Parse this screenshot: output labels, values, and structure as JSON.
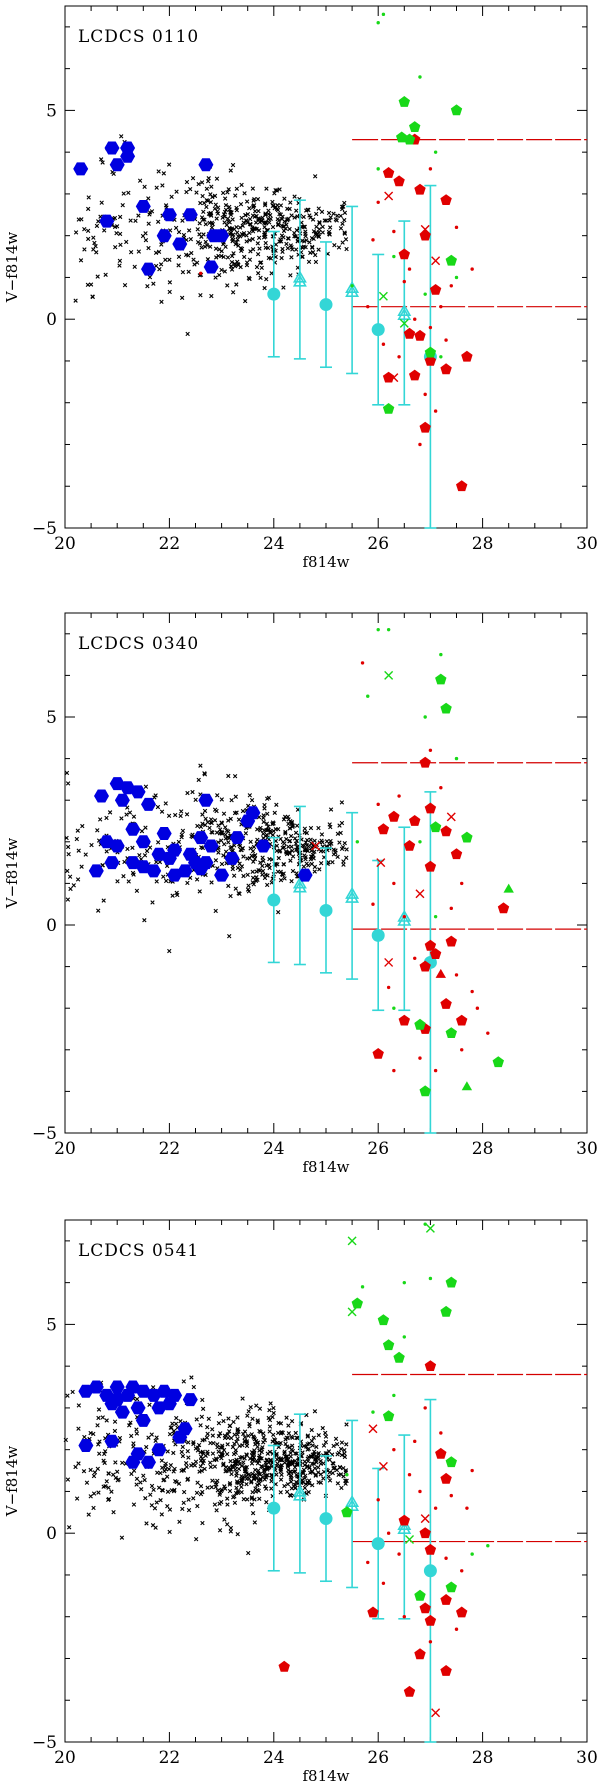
{
  "figure": {
    "colors": {
      "field_stars": "#000000",
      "cluster_members": "#0000e0",
      "error_bars": "#33d6d6",
      "red_candidates": "#e00000",
      "green_candidates": "#18d818",
      "reference_lines": "#d40000"
    }
  },
  "chart_data": [
    {
      "type": "scatter",
      "panel_label": "LCDCS 0110",
      "xlabel": "f814w",
      "ylabel": "V−f814w",
      "xlim": [
        20,
        30
      ],
      "ylim": [
        -5,
        7.5
      ],
      "xticks": [
        "20",
        "22",
        "24",
        "26",
        "28",
        "30"
      ],
      "yticks": [
        "−5",
        "0",
        "5"
      ],
      "hlines": [
        4.3,
        0.3
      ],
      "hline_xmin": 25.5,
      "errorbars": {
        "filled": [
          {
            "x": 24,
            "y": 0.6,
            "err": 1.5
          },
          {
            "x": 25,
            "y": 0.35,
            "err": 1.5
          },
          {
            "x": 26,
            "y": -0.25,
            "err": 1.8
          },
          {
            "x": 27,
            "y": -0.9,
            "err": 4.1
          }
        ],
        "open": [
          {
            "x": 24.5,
            "y": 0.95,
            "err": 1.9
          },
          {
            "x": 25.5,
            "y": 0.7,
            "err": 2.0
          },
          {
            "x": 26.5,
            "y": 0.15,
            "err": 2.2
          }
        ]
      },
      "field": {
        "n": 560,
        "seed": 11,
        "color_mean": 2.1,
        "color_sd": 0.85,
        "xmin": 20.2,
        "xmax": 25.4,
        "core_x": 23.6,
        "core_sd": 1.0,
        "spread_scale": 0.75
      },
      "blue_hexagons": [
        [
          20.3,
          3.6
        ],
        [
          20.8,
          2.35
        ],
        [
          20.9,
          4.1
        ],
        [
          21.0,
          3.7
        ],
        [
          21.2,
          3.9
        ],
        [
          21.2,
          4.1
        ],
        [
          21.5,
          2.7
        ],
        [
          21.6,
          1.2
        ],
        [
          21.9,
          2.0
        ],
        [
          22.0,
          2.5
        ],
        [
          22.2,
          1.8
        ],
        [
          22.4,
          2.5
        ],
        [
          22.7,
          3.7
        ],
        [
          22.8,
          1.25
        ],
        [
          22.85,
          2.0
        ],
        [
          23.0,
          2.0
        ]
      ],
      "red_pentagons": [
        [
          26.2,
          3.5
        ],
        [
          26.4,
          3.3
        ],
        [
          26.7,
          4.3
        ],
        [
          26.8,
          3.1
        ],
        [
          26.9,
          2.0
        ],
        [
          27.3,
          2.85
        ],
        [
          26.5,
          1.55
        ],
        [
          27.1,
          0.7
        ],
        [
          26.6,
          -0.35
        ],
        [
          26.8,
          -0.4
        ],
        [
          26.7,
          -1.35
        ],
        [
          26.2,
          -1.4
        ],
        [
          27.0,
          -1.0
        ],
        [
          27.3,
          -1.2
        ],
        [
          27.7,
          -0.9
        ],
        [
          26.9,
          -2.6
        ],
        [
          27.6,
          -4.0
        ]
      ],
      "green_pentagons": [
        [
          26.5,
          5.2
        ],
        [
          26.6,
          4.3
        ],
        [
          26.45,
          4.35
        ],
        [
          27.5,
          5.0
        ],
        [
          26.7,
          4.6
        ],
        [
          27.4,
          1.4
        ],
        [
          27.0,
          -0.8
        ],
        [
          26.2,
          -2.15
        ]
      ],
      "red_crosses": [
        [
          26.2,
          2.95
        ],
        [
          26.9,
          2.15
        ],
        [
          27.1,
          1.4
        ],
        [
          26.3,
          -1.4
        ]
      ],
      "green_crosses": [
        [
          26.1,
          0.55
        ],
        [
          26.5,
          -0.1
        ]
      ],
      "red_dots": [
        [
          25.9,
          1.9
        ],
        [
          26.3,
          2.1
        ],
        [
          26.5,
          0.9
        ],
        [
          26.7,
          0.0
        ],
        [
          27.0,
          -0.2
        ],
        [
          27.2,
          0.3
        ],
        [
          27.3,
          -0.5
        ],
        [
          26.9,
          -1.8
        ],
        [
          27.1,
          -2.2
        ],
        [
          26.4,
          -0.9
        ],
        [
          27.5,
          2.2
        ],
        [
          26.6,
          1.2
        ],
        [
          26.1,
          -0.6
        ],
        [
          27.8,
          1.2
        ],
        [
          27.0,
          3.6
        ],
        [
          25.8,
          0.3
        ],
        [
          22.6,
          1.1
        ],
        [
          26.0,
          2.8
        ],
        [
          27.4,
          0.8
        ],
        [
          26.8,
          -3.0
        ]
      ],
      "green_dots": [
        [
          26.0,
          7.1
        ],
        [
          26.1,
          7.3
        ],
        [
          27.1,
          4.0
        ],
        [
          26.3,
          1.5
        ],
        [
          25.5,
          0.8
        ],
        [
          26.9,
          0.6
        ],
        [
          27.2,
          -0.9
        ],
        [
          26.8,
          5.8
        ],
        [
          27.5,
          1.0
        ],
        [
          26.0,
          3.6
        ]
      ]
    },
    {
      "type": "scatter",
      "panel_label": "LCDCS 0340",
      "xlabel": "f814w",
      "ylabel": "V−f814w",
      "xlim": [
        20,
        30
      ],
      "ylim": [
        -5,
        7.5
      ],
      "xticks": [
        "20",
        "22",
        "24",
        "26",
        "28",
        "30"
      ],
      "yticks": [
        "−5",
        "0",
        "5"
      ],
      "hlines": [
        3.9,
        -0.1
      ],
      "hline_xmin": 25.5,
      "errorbars": {
        "filled": [
          {
            "x": 24,
            "y": 0.6,
            "err": 1.5
          },
          {
            "x": 25,
            "y": 0.35,
            "err": 1.5
          },
          {
            "x": 26,
            "y": -0.25,
            "err": 1.8
          },
          {
            "x": 27,
            "y": -0.9,
            "err": 4.1
          }
        ],
        "open": [
          {
            "x": 24.5,
            "y": 0.95,
            "err": 1.9
          },
          {
            "x": 25.5,
            "y": 0.7,
            "err": 2.0
          },
          {
            "x": 26.5,
            "y": 0.15,
            "err": 2.2
          }
        ]
      },
      "field": {
        "n": 520,
        "seed": 37,
        "color_mean": 1.9,
        "color_sd": 0.85,
        "xmin": 20.0,
        "xmax": 25.4,
        "core_x": 23.9,
        "core_sd": 1.0,
        "spread_scale": 0.7
      },
      "blue_hexagons": [
        [
          20.6,
          1.3
        ],
        [
          20.7,
          3.1
        ],
        [
          20.8,
          2.0
        ],
        [
          20.9,
          1.5
        ],
        [
          21.0,
          3.4
        ],
        [
          21.0,
          1.9
        ],
        [
          21.1,
          3.0
        ],
        [
          21.2,
          3.3
        ],
        [
          21.3,
          2.3
        ],
        [
          21.3,
          1.5
        ],
        [
          21.4,
          3.2
        ],
        [
          21.5,
          2.0
        ],
        [
          21.5,
          1.4
        ],
        [
          21.6,
          2.9
        ],
        [
          21.7,
          1.3
        ],
        [
          21.8,
          1.7
        ],
        [
          21.9,
          2.2
        ],
        [
          22.0,
          1.6
        ],
        [
          22.1,
          1.2
        ],
        [
          22.1,
          1.8
        ],
        [
          22.3,
          1.3
        ],
        [
          22.4,
          1.7
        ],
        [
          22.5,
          1.5
        ],
        [
          22.6,
          1.35
        ],
        [
          22.6,
          2.1
        ],
        [
          22.7,
          1.5
        ],
        [
          22.8,
          1.9
        ],
        [
          23.0,
          1.2
        ],
        [
          23.2,
          1.6
        ],
        [
          23.3,
          2.1
        ],
        [
          23.5,
          2.5
        ],
        [
          23.6,
          2.7
        ],
        [
          23.8,
          1.9
        ],
        [
          22.7,
          3.0
        ],
        [
          24.6,
          1.2
        ]
      ],
      "red_pentagons": [
        [
          26.1,
          2.3
        ],
        [
          26.3,
          2.6
        ],
        [
          26.7,
          2.5
        ],
        [
          27.0,
          2.8
        ],
        [
          27.0,
          1.4
        ],
        [
          26.9,
          3.9
        ],
        [
          26.6,
          1.9
        ],
        [
          27.3,
          2.25
        ],
        [
          27.5,
          1.7
        ],
        [
          28.4,
          0.4
        ],
        [
          27.0,
          -0.5
        ],
        [
          27.1,
          -0.7
        ],
        [
          26.9,
          -1.0
        ],
        [
          27.4,
          -0.4
        ],
        [
          27.3,
          -1.9
        ],
        [
          27.6,
          -2.3
        ],
        [
          26.5,
          -2.3
        ],
        [
          26.9,
          -2.5
        ],
        [
          26.0,
          -3.1
        ]
      ],
      "red_triangles": [
        [
          27.2,
          -1.2
        ]
      ],
      "green_pentagons": [
        [
          27.2,
          5.9
        ],
        [
          27.3,
          5.2
        ],
        [
          27.7,
          2.1
        ],
        [
          27.1,
          2.35
        ],
        [
          27.4,
          -2.6
        ],
        [
          26.8,
          -2.4
        ],
        [
          28.3,
          -3.3
        ],
        [
          26.9,
          -4.0
        ]
      ],
      "green_triangles": [
        [
          28.5,
          0.85
        ],
        [
          27.7,
          -3.9
        ]
      ],
      "red_crosses": [
        [
          26.2,
          -0.9
        ],
        [
          27.4,
          2.6
        ],
        [
          26.05,
          1.5
        ],
        [
          26.8,
          0.75
        ],
        [
          24.8,
          1.9
        ]
      ],
      "green_crosses": [
        [
          26.2,
          6.0
        ]
      ],
      "red_dots": [
        [
          25.7,
          6.3
        ],
        [
          26.3,
          1.0
        ],
        [
          26.5,
          0.2
        ],
        [
          26.7,
          -0.8
        ],
        [
          26.2,
          -1.5
        ],
        [
          27.5,
          -1.2
        ],
        [
          27.8,
          -1.6
        ],
        [
          27.9,
          -2.0
        ],
        [
          28.1,
          -2.6
        ],
        [
          27.6,
          -3.0
        ],
        [
          26.3,
          -3.5
        ],
        [
          26.8,
          -3.2
        ],
        [
          27.1,
          -3.5
        ],
        [
          27.4,
          0.4
        ],
        [
          26.0,
          2.9
        ],
        [
          26.4,
          3.1
        ],
        [
          27.2,
          3.3
        ],
        [
          25.9,
          0.5
        ],
        [
          27.0,
          4.2
        ],
        [
          27.6,
          1.0
        ]
      ],
      "green_dots": [
        [
          26.0,
          7.1
        ],
        [
          26.2,
          7.1
        ],
        [
          27.2,
          6.5
        ],
        [
          26.9,
          5.0
        ],
        [
          27.5,
          4.0
        ],
        [
          25.8,
          5.5
        ],
        [
          25.6,
          2.0
        ],
        [
          27.1,
          0.2
        ],
        [
          26.8,
          2.0
        ],
        [
          26.3,
          -2.0
        ]
      ]
    },
    {
      "type": "scatter",
      "panel_label": "LCDCS 0541",
      "xlabel": "f814w",
      "ylabel": "V−f814w",
      "xlim": [
        20,
        30
      ],
      "ylim": [
        -5,
        7.5
      ],
      "xticks": [
        "20",
        "22",
        "24",
        "26",
        "28",
        "30"
      ],
      "yticks": [
        "−5",
        "0",
        "5"
      ],
      "hlines": [
        3.8,
        -0.2
      ],
      "hline_xmin": 25.5,
      "errorbars": {
        "filled": [
          {
            "x": 24,
            "y": 0.6,
            "err": 1.5
          },
          {
            "x": 25,
            "y": 0.35,
            "err": 1.5
          },
          {
            "x": 26,
            "y": -0.25,
            "err": 1.8
          },
          {
            "x": 27,
            "y": -0.9,
            "err": 4.1
          }
        ],
        "open": [
          {
            "x": 24.5,
            "y": 0.95,
            "err": 1.9
          },
          {
            "x": 25.5,
            "y": 0.7,
            "err": 2.0
          },
          {
            "x": 26.5,
            "y": 0.15,
            "err": 2.2
          }
        ]
      },
      "field": {
        "n": 780,
        "seed": 73,
        "color_mean": 1.7,
        "color_sd": 0.8,
        "xmin": 20.0,
        "xmax": 25.4,
        "core_x": 23.8,
        "core_sd": 1.1,
        "spread_scale": 0.65
      },
      "blue_hexagons": [
        [
          20.4,
          3.4
        ],
        [
          20.4,
          2.1
        ],
        [
          20.6,
          3.5
        ],
        [
          20.8,
          3.3
        ],
        [
          20.9,
          3.1
        ],
        [
          20.9,
          2.2
        ],
        [
          21.0,
          3.5
        ],
        [
          21.0,
          3.2
        ],
        [
          21.1,
          2.9
        ],
        [
          21.2,
          3.3
        ],
        [
          21.3,
          3.5
        ],
        [
          21.3,
          1.7
        ],
        [
          21.4,
          3.0
        ],
        [
          21.5,
          2.7
        ],
        [
          21.5,
          3.4
        ],
        [
          21.6,
          1.7
        ],
        [
          21.7,
          3.3
        ],
        [
          21.8,
          3.0
        ],
        [
          21.8,
          2.0
        ],
        [
          21.9,
          3.4
        ],
        [
          22.0,
          3.1
        ],
        [
          22.1,
          3.3
        ],
        [
          22.2,
          2.3
        ],
        [
          22.3,
          2.5
        ],
        [
          22.4,
          3.2
        ],
        [
          21.4,
          1.9
        ]
      ],
      "red_pentagons": [
        [
          27.0,
          4.0
        ],
        [
          27.2,
          1.9
        ],
        [
          27.3,
          1.3
        ],
        [
          26.5,
          0.3
        ],
        [
          26.9,
          0.0
        ],
        [
          27.0,
          -0.4
        ],
        [
          26.9,
          -1.8
        ],
        [
          27.0,
          -2.1
        ],
        [
          27.3,
          -1.6
        ],
        [
          27.6,
          -1.9
        ],
        [
          26.8,
          -2.9
        ],
        [
          27.3,
          -3.3
        ],
        [
          25.9,
          -1.9
        ],
        [
          26.6,
          -3.8
        ],
        [
          24.2,
          -3.2
        ]
      ],
      "green_pentagons": [
        [
          25.6,
          5.5
        ],
        [
          26.1,
          5.1
        ],
        [
          27.3,
          5.3
        ],
        [
          27.4,
          6.0
        ],
        [
          26.2,
          4.5
        ],
        [
          26.4,
          4.2
        ],
        [
          26.2,
          2.8
        ],
        [
          27.4,
          1.7
        ],
        [
          26.8,
          -1.5
        ],
        [
          27.4,
          -1.3
        ],
        [
          25.4,
          0.5
        ]
      ],
      "red_crosses": [
        [
          27.1,
          -4.3
        ],
        [
          26.1,
          1.6
        ],
        [
          25.9,
          2.5
        ],
        [
          26.9,
          0.35
        ]
      ],
      "green_crosses": [
        [
          25.5,
          7.0
        ],
        [
          27.0,
          7.3
        ],
        [
          25.5,
          5.3
        ],
        [
          26.6,
          -0.15
        ]
      ],
      "red_dots": [
        [
          26.3,
          2.0
        ],
        [
          26.6,
          1.4
        ],
        [
          26.8,
          1.0
        ],
        [
          27.1,
          0.6
        ],
        [
          27.3,
          -0.6
        ],
        [
          27.6,
          -0.9
        ],
        [
          26.4,
          -0.5
        ],
        [
          26.1,
          -1.2
        ],
        [
          27.7,
          0.6
        ],
        [
          27.2,
          2.4
        ],
        [
          26.7,
          2.2
        ],
        [
          26.0,
          0.8
        ],
        [
          27.5,
          -2.3
        ],
        [
          27.0,
          -2.6
        ],
        [
          26.5,
          -2.0
        ],
        [
          27.8,
          1.5
        ],
        [
          26.2,
          0.0
        ],
        [
          25.8,
          -0.7
        ],
        [
          27.4,
          0.9
        ],
        [
          26.9,
          3.0
        ]
      ],
      "green_dots": [
        [
          26.9,
          7.4
        ],
        [
          25.7,
          5.9
        ],
        [
          26.5,
          4.7
        ],
        [
          27.0,
          6.1
        ],
        [
          26.3,
          3.3
        ],
        [
          25.9,
          2.9
        ],
        [
          27.8,
          -0.5
        ],
        [
          28.1,
          -0.3
        ],
        [
          25.4,
          1.4
        ],
        [
          26.5,
          6.0
        ]
      ]
    }
  ]
}
